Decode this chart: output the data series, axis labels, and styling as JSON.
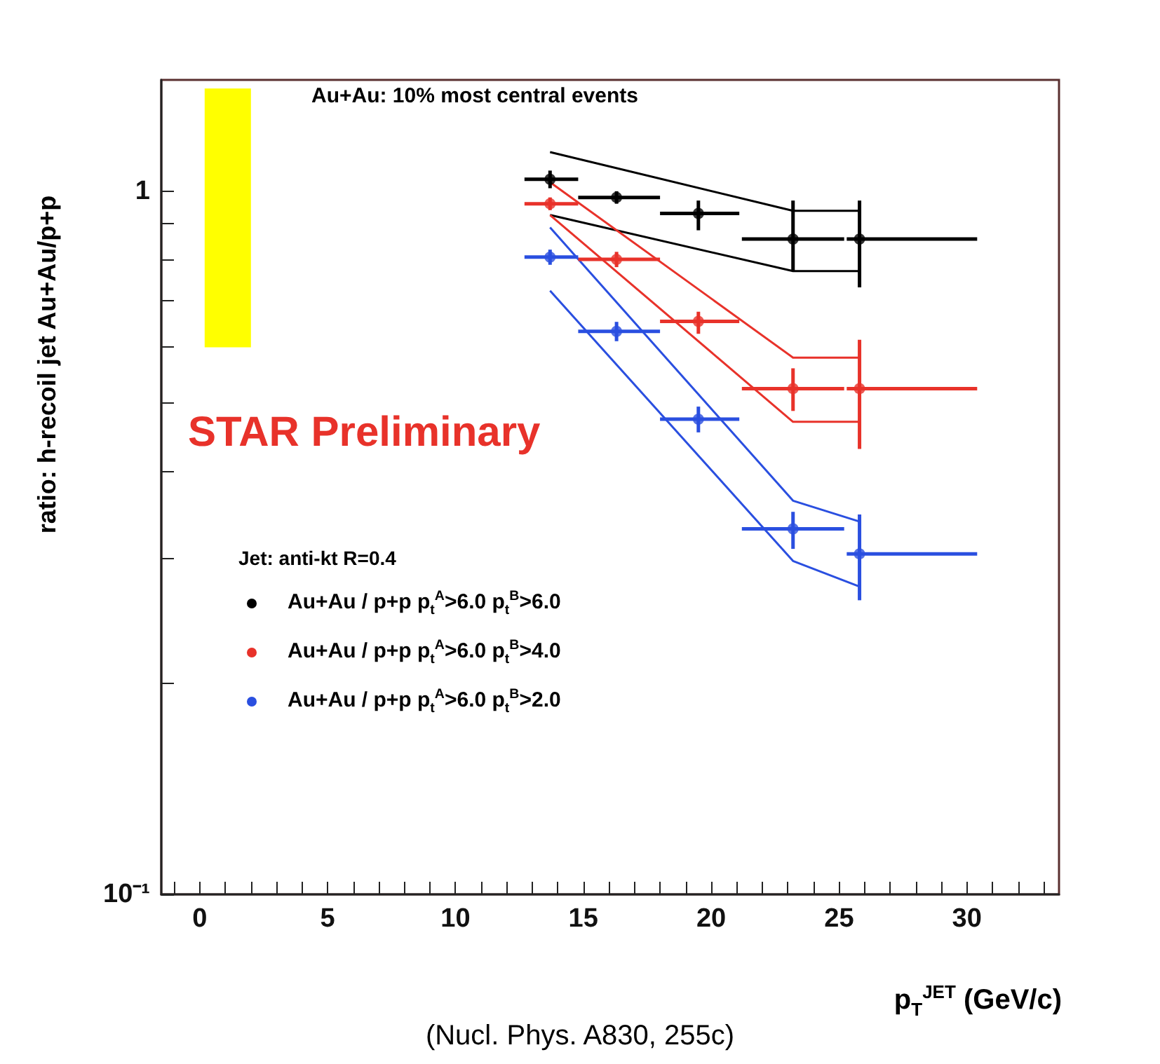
{
  "chart_data": {
    "type": "scatter",
    "title": "Au+Au: 10% most central events",
    "xlabel": "p$_{T}$$^{JET}$ (GeV/c)",
    "ylabel": "ratio: h-recoil jet Au+Au/p+p",
    "legend_title": "Jet: anti-kt R=0.4",
    "annotations": [
      "STAR Preliminary",
      "(Nucl. Phys. A830, 255c)"
    ],
    "log": "y",
    "grid": false,
    "legend": "bottom left",
    "xlim": [
      -1.5,
      33.6
    ],
    "ylim": [
      0.1,
      1.44
    ],
    "xticks": [
      {
        "value": -1,
        "label": null
      },
      0,
      {
        "value": 1,
        "label": null
      },
      {
        "value": 2,
        "label": null
      },
      {
        "value": 3,
        "label": null
      },
      {
        "value": 4,
        "label": null
      },
      5,
      {
        "value": 6,
        "label": null
      },
      {
        "value": 7,
        "label": null
      },
      {
        "value": 8,
        "label": null
      },
      {
        "value": 9,
        "label": null
      },
      10,
      {
        "value": 11,
        "label": null
      },
      {
        "value": 12,
        "label": null
      },
      {
        "value": 13,
        "label": null
      },
      {
        "value": 14,
        "label": null
      },
      15,
      {
        "value": 16,
        "label": null
      },
      {
        "value": 17,
        "label": null
      },
      {
        "value": 18,
        "label": null
      },
      {
        "value": 19,
        "label": null
      },
      20,
      {
        "value": 21,
        "label": null
      },
      {
        "value": 22,
        "label": null
      },
      {
        "value": 23,
        "label": null
      },
      {
        "value": 24,
        "label": null
      },
      25,
      {
        "value": 26,
        "label": null
      },
      {
        "value": 27,
        "label": null
      },
      {
        "value": 28,
        "label": null
      },
      {
        "value": 29,
        "label": null
      },
      30,
      {
        "value": 31,
        "label": null
      },
      {
        "value": 32,
        "label": null
      },
      {
        "value": 33,
        "label": null
      }
    ],
    "yticks": [
      {
        "value": 0.1,
        "label": "10⁻¹"
      },
      {
        "value": 0.2,
        "label": null
      },
      {
        "value": 0.3,
        "label": null
      },
      {
        "value": 0.4,
        "label": null
      },
      {
        "value": 0.5,
        "label": null
      },
      {
        "value": 0.6,
        "label": null
      },
      {
        "value": 0.7,
        "label": null
      },
      {
        "value": 0.8,
        "label": null
      },
      {
        "value": 0.9,
        "label": null
      },
      1
    ],
    "series": [
      {
        "type": "bar",
        "color": "#ffff00",
        "x": [
          1.1
        ],
        "base": [
          0.6
        ],
        "values": [
          0.8
        ]
      },
      {
        "type": "line",
        "color": "#000000",
        "x": [
          13.7,
          23.2,
          25.8
        ],
        "values": [
          1.137,
          0.938,
          0.938
        ]
      },
      {
        "type": "line",
        "color": "#000000",
        "x": [
          13.7,
          23.2,
          25.8
        ],
        "values": [
          0.925,
          0.77,
          0.77
        ]
      },
      {
        "type": "line",
        "color": "#e8322a",
        "x": [
          13.7,
          23.2,
          25.8
        ],
        "values": [
          1.03,
          0.58,
          0.58
        ]
      },
      {
        "type": "line",
        "color": "#e8322a",
        "x": [
          13.7,
          23.2,
          25.8
        ],
        "values": [
          0.925,
          0.47,
          0.47
        ]
      },
      {
        "type": "line",
        "color": "#2a4fe0",
        "x": [
          13.7,
          23.2,
          25.8
        ],
        "values": [
          0.888,
          0.363,
          0.339
        ]
      },
      {
        "type": "line",
        "color": "#2a4fe0",
        "x": [
          13.7,
          23.2,
          25.8
        ],
        "values": [
          0.722,
          0.298,
          0.274
        ]
      },
      {
        "name": "Au+Au / p+p p$_{t}$$^{A}$>6.0 p$_{t}$$^{B}$>6.0",
        "marker": "circle",
        "color": "#000000",
        "x": [
          13.7,
          16.3,
          19.5,
          23.2,
          25.8
        ],
        "values": [
          1.04,
          0.98,
          0.93,
          0.855,
          0.855
        ],
        "errors": [
          0.03,
          0.02,
          [
            0.88,
            0.97
          ],
          [
            0.77,
            0.97
          ],
          [
            0.73,
            0.97
          ]
        ],
        "xerrors": [
          [
            12.7,
            14.8
          ],
          [
            14.8,
            18.0
          ],
          [
            18.0,
            21.1
          ],
          [
            21.2,
            25.2
          ],
          [
            25.3,
            30.4
          ]
        ]
      },
      {
        "name": "Au+Au / p+p p$_{t}$$^{A}$>6.0 p$_{t}$$^{B}$>4.0",
        "marker": "circle",
        "color": "#e8322a",
        "x": [
          13.7,
          16.3,
          19.5,
          23.2,
          25.8
        ],
        "values": [
          0.96,
          0.8,
          0.653,
          0.524,
          0.524
        ],
        "errors": [
          0.02,
          0.02,
          [
            0.627,
            0.674
          ],
          [
            0.487,
            0.56
          ],
          [
            0.43,
            0.615
          ]
        ],
        "xerrors": [
          [
            12.7,
            14.8
          ],
          [
            14.8,
            18.0
          ],
          [
            18.0,
            21.1
          ],
          [
            21.2,
            25.2
          ],
          [
            25.3,
            30.4
          ]
        ]
      },
      {
        "name": "Au+Au / p+p p$_{t}$$^{A}$>6.0 p$_{t}$$^{B}$>2.0",
        "marker": "circle",
        "color": "#2a4fe0",
        "x": [
          13.7,
          16.3,
          19.5,
          23.2,
          25.8
        ],
        "values": [
          0.806,
          0.632,
          0.474,
          0.331,
          0.305
        ],
        "errors": [
          0.02,
          0.02,
          0.02,
          [
            0.31,
            0.35
          ],
          [
            0.262,
            0.347
          ]
        ],
        "xerrors": [
          [
            12.7,
            14.8
          ],
          [
            14.8,
            18.0
          ],
          [
            18.0,
            21.1
          ],
          [
            21.2,
            25.2
          ],
          [
            25.3,
            30.4
          ]
        ]
      }
    ]
  }
}
